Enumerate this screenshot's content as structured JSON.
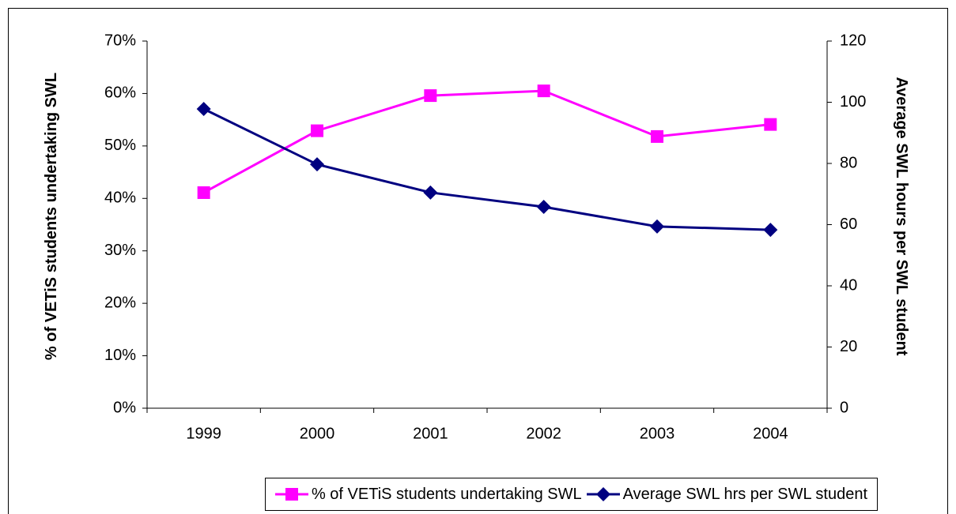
{
  "chart_data": {
    "type": "line",
    "categories": [
      "1999",
      "2000",
      "2001",
      "2002",
      "2003",
      "2004"
    ],
    "series": [
      {
        "name": "% of VETiS students undertaking SWL",
        "color": "#ff00ff",
        "marker": "square",
        "values": [
          41.1,
          52.9,
          59.6,
          60.5,
          51.8,
          54.1
        ]
      },
      {
        "name": "Average SWL hrs per SWL student",
        "color": "#000080",
        "marker": "diamond",
        "axis": "y2",
        "values": [
          97.8,
          79.7,
          70.5,
          65.8,
          59.4,
          58.3
        ]
      }
    ],
    "ylabel": "% of VETiS students undertaking SWL",
    "y2label": "Average SWL hours per SWL student",
    "ylim": [
      0,
      70
    ],
    "yticks": [
      {
        "value": 0,
        "label": "0%"
      },
      {
        "value": 10,
        "label": "10%"
      },
      {
        "value": 20,
        "label": "20%"
      },
      {
        "value": 30,
        "label": "30%"
      },
      {
        "value": 40,
        "label": "40%"
      },
      {
        "value": 50,
        "label": "50%"
      },
      {
        "value": 60,
        "label": "60%"
      },
      {
        "value": 70,
        "label": "70%"
      }
    ],
    "y2lim": [
      0,
      120
    ],
    "y2ticks": [
      0,
      20,
      40,
      60,
      80,
      100,
      120
    ],
    "grid": false,
    "legend": "bottom"
  }
}
